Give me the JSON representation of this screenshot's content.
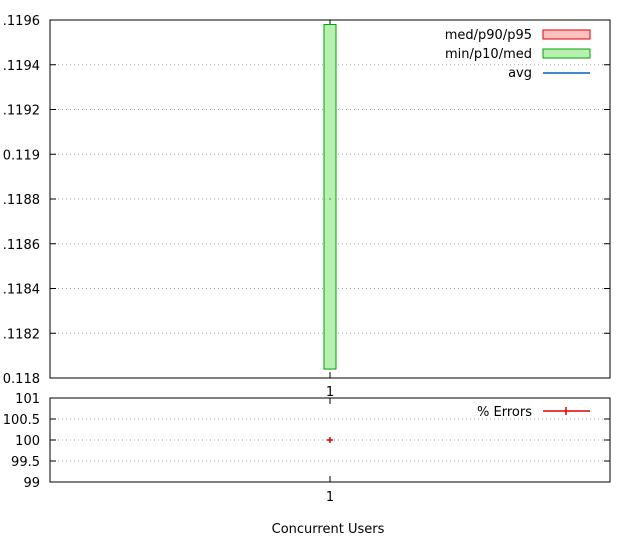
{
  "chart_data": [
    {
      "type": "box",
      "xlabel": "",
      "categories": [
        "1"
      ],
      "ylim": [
        0.118,
        0.1196
      ],
      "yticks": [
        0.118,
        0.1182,
        0.1184,
        0.1186,
        0.1188,
        0.119,
        0.1192,
        0.1194,
        0.1196
      ],
      "ytick_labels": [
        "0.118",
        ".1182",
        ".1184",
        ".1186",
        ".1188",
        "0.119",
        ".1192",
        ".1194",
        ".1196"
      ],
      "grid": true,
      "legend_position": "top-right",
      "legend": [
        {
          "label": "med/p90/p95",
          "color": "#ffc0c0",
          "stroke": "#e00000",
          "kind": "box"
        },
        {
          "label": "min/p10/med",
          "color": "#b8f0b0",
          "stroke": "#00a000",
          "kind": "box"
        },
        {
          "label": "avg",
          "color": "#0060c0",
          "kind": "line"
        }
      ],
      "series": [
        {
          "name": "min/p10/med",
          "x": 1,
          "low": 0.11804,
          "high": 0.11958,
          "color": "#b8f0b0",
          "stroke": "#00a000"
        },
        {
          "name": "avg",
          "x": 1,
          "value": 0.1188,
          "color": "#0060c0"
        }
      ]
    },
    {
      "type": "scatter",
      "xlabel": "Concurrent Users",
      "categories": [
        "1"
      ],
      "ylim": [
        99,
        101
      ],
      "yticks": [
        99,
        99.5,
        100,
        100.5,
        101
      ],
      "ytick_labels": [
        "99",
        "99.5",
        "100",
        "100.5",
        "101"
      ],
      "grid": true,
      "legend_position": "top-right",
      "legend": [
        {
          "label": "% Errors",
          "color": "#e00000",
          "kind": "linepoint"
        }
      ],
      "series": [
        {
          "name": "% Errors",
          "x": [
            1
          ],
          "values": [
            100
          ],
          "color": "#e00000"
        }
      ]
    }
  ]
}
